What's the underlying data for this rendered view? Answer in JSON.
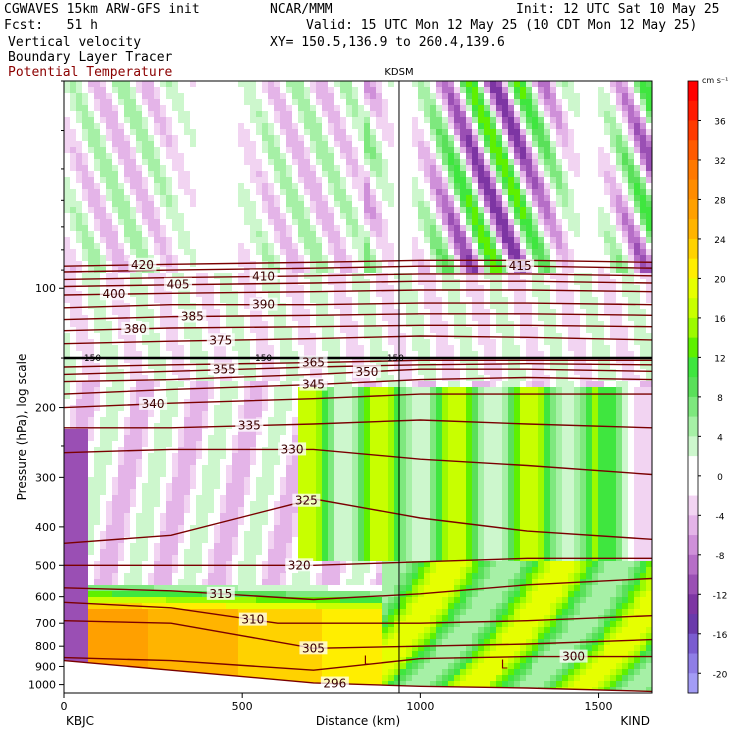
{
  "header": {
    "model": "CGWAVES 15km ARW-GFS init",
    "center": "NCAR/MMM",
    "init": "Init: 12 UTC Sat 10 May 25",
    "fcst": "Fcst:   51 h",
    "valid": "Valid: 15 UTC Mon 12 May 25 (10 CDT Mon 12 May 25)",
    "field1": "Vertical velocity",
    "field2": "Boundary Layer Tracer",
    "field3": "Potential Temperature",
    "xy": "XY= 150.5,136.9 to 260.4,139.6"
  },
  "colors": {
    "theta": "#7a0000",
    "accent_title": "#8b1a1a"
  },
  "chart_data": {
    "type": "heatmap",
    "title": "",
    "xlabel": "Distance (km)",
    "ylabel": "Pressure (hPa), log scale",
    "xlim": [
      0,
      1650
    ],
    "ylim_hpa": [
      1050,
      30
    ],
    "x_ticks": [
      0,
      500,
      1000,
      1500
    ],
    "x_tick_labels": [
      "0",
      "500",
      "1000",
      "1500"
    ],
    "y_ticks": [
      1000,
      900,
      800,
      700,
      600,
      500,
      400,
      300,
      200,
      100
    ],
    "y_tick_labels": [
      "1000",
      "900",
      "800",
      "700",
      "600",
      "500",
      "400",
      "300",
      "200",
      "100"
    ],
    "x_endpoints": [
      "KBJC",
      "KIND"
    ],
    "marker_label": "KDSM",
    "marker_x_km": 940,
    "colorbar": {
      "unit": "cm s⁻¹",
      "tick_labels": [
        "36",
        "32",
        "28",
        "24",
        "20",
        "16",
        "12",
        "8",
        "4",
        "0",
        "-4",
        "-8",
        "-12",
        "-16",
        "-20"
      ],
      "tick_values": [
        36,
        32,
        28,
        24,
        20,
        16,
        12,
        8,
        4,
        0,
        -4,
        -8,
        -12,
        -16,
        -20
      ],
      "levels": [
        {
          "from": 40,
          "to": 38,
          "color": "#ff0000"
        },
        {
          "from": 38,
          "to": 36,
          "color": "#ff1a00"
        },
        {
          "from": 36,
          "to": 34,
          "color": "#ff3a00"
        },
        {
          "from": 34,
          "to": 32,
          "color": "#ff5a00"
        },
        {
          "from": 32,
          "to": 30,
          "color": "#ff7800"
        },
        {
          "from": 30,
          "to": 28,
          "color": "#ff8c00"
        },
        {
          "from": 28,
          "to": 26,
          "color": "#ffa000"
        },
        {
          "from": 26,
          "to": 24,
          "color": "#ffb400"
        },
        {
          "from": 24,
          "to": 22,
          "color": "#ffd200"
        },
        {
          "from": 22,
          "to": 20,
          "color": "#ffee00"
        },
        {
          "from": 20,
          "to": 18,
          "color": "#e6ff00"
        },
        {
          "from": 18,
          "to": 16,
          "color": "#c8ff00"
        },
        {
          "from": 16,
          "to": 14,
          "color": "#9cfa00"
        },
        {
          "from": 14,
          "to": 12,
          "color": "#5ef000"
        },
        {
          "from": 12,
          "to": 10,
          "color": "#3fe63f"
        },
        {
          "from": 10,
          "to": 8,
          "color": "#5ae05a"
        },
        {
          "from": 8,
          "to": 6,
          "color": "#7ee87e"
        },
        {
          "from": 6,
          "to": 4,
          "color": "#a6f0a6"
        },
        {
          "from": 4,
          "to": 2,
          "color": "#cdf7cd"
        },
        {
          "from": 2,
          "to": -2,
          "color": "#ffffff"
        },
        {
          "from": -2,
          "to": -4,
          "color": "#f2d4f2"
        },
        {
          "from": -4,
          "to": -6,
          "color": "#e4b4e8"
        },
        {
          "from": -6,
          "to": -8,
          "color": "#cf90d9"
        },
        {
          "from": -8,
          "to": -10,
          "color": "#b66ec7"
        },
        {
          "from": -10,
          "to": -12,
          "color": "#9a4fb4"
        },
        {
          "from": -12,
          "to": -14,
          "color": "#7d35a3"
        },
        {
          "from": -14,
          "to": -16,
          "color": "#6a3aab"
        },
        {
          "from": -16,
          "to": -18,
          "color": "#7a5cd0"
        },
        {
          "from": -18,
          "to": -20,
          "color": "#8f7ee6"
        },
        {
          "from": -20,
          "to": -22,
          "color": "#a39cf5"
        }
      ]
    },
    "theta_contours": [
      {
        "value": 296,
        "label": "296",
        "x": [
          0,
          300,
          700,
          1000,
          1300,
          1650
        ],
        "p": [
          870,
          920,
          990,
          1010,
          1020,
          1040
        ],
        "label_at_km": 760
      },
      {
        "value": 300,
        "label": "300",
        "x": [
          0,
          300,
          700,
          1000,
          1300,
          1650
        ],
        "p": [
          855,
          870,
          920,
          860,
          850,
          850
        ],
        "label_at_km": 1430
      },
      {
        "value": 305,
        "label": "305",
        "x": [
          0,
          300,
          700,
          1000,
          1300,
          1650
        ],
        "p": [
          690,
          700,
          810,
          800,
          790,
          770
        ],
        "label_at_km": 700
      },
      {
        "value": 310,
        "label": "310",
        "x": [
          0,
          300,
          600,
          1000,
          1300,
          1650
        ],
        "p": [
          620,
          640,
          700,
          700,
          690,
          670
        ],
        "label_at_km": 530
      },
      {
        "value": 315,
        "label": "315",
        "x": [
          0,
          300,
          700,
          1000,
          1300,
          1650
        ],
        "p": [
          570,
          580,
          610,
          590,
          560,
          540
        ],
        "label_at_km": 440
      },
      {
        "value": 320,
        "label": "320",
        "x": [
          0,
          300,
          700,
          1000,
          1300,
          1650
        ],
        "p": [
          500,
          500,
          500,
          490,
          480,
          480
        ],
        "label_at_km": 660
      },
      {
        "value": 325,
        "label": "325",
        "x": [
          0,
          300,
          700,
          1000,
          1300,
          1650
        ],
        "p": [
          440,
          420,
          340,
          380,
          410,
          430
        ],
        "label_at_km": 680
      },
      {
        "value": 330,
        "label": "330",
        "x": [
          0,
          300,
          700,
          1000,
          1300,
          1650
        ],
        "p": [
          260,
          255,
          255,
          270,
          280,
          295
        ],
        "label_at_km": 640
      },
      {
        "value": 335,
        "label": "335",
        "x": [
          0,
          300,
          700,
          1000,
          1300,
          1650
        ],
        "p": [
          225,
          225,
          220,
          215,
          220,
          225
        ],
        "label_at_km": 520
      },
      {
        "value": 340,
        "label": "340",
        "x": [
          0,
          300,
          700,
          1000,
          1300,
          1650
        ],
        "p": [
          200,
          195,
          190,
          185,
          185,
          185
        ],
        "label_at_km": 250
      },
      {
        "value": 345,
        "label": "345",
        "x": [
          0,
          300,
          700,
          1000,
          1300,
          1650
        ],
        "p": [
          185,
          180,
          175,
          170,
          168,
          170
        ],
        "label_at_km": 700
      },
      {
        "value": 350,
        "label": "350",
        "x": [
          0,
          300,
          700,
          1000,
          1300,
          1650
        ],
        "p": [
          172,
          170,
          165,
          160,
          160,
          162
        ],
        "label_at_km": 850
      },
      {
        "value": 355,
        "label": "355",
        "x": [
          0,
          300,
          700,
          1000,
          1300,
          1650
        ],
        "p": [
          165,
          162,
          158,
          156,
          155,
          156
        ],
        "label_at_km": 450
      },
      {
        "value": 365,
        "label": "365",
        "x": [
          0,
          300,
          700,
          1000,
          1300,
          1650
        ],
        "p": [
          158,
          156,
          154,
          152,
          152,
          152
        ],
        "label_at_km": 700
      },
      {
        "value": 375,
        "label": "375",
        "x": [
          0,
          300,
          700,
          1000,
          1300,
          1650
        ],
        "p": [
          138,
          136,
          134,
          132,
          133,
          135
        ],
        "label_at_km": 440
      },
      {
        "value": 380,
        "label": "380",
        "x": [
          0,
          300,
          700,
          1000,
          1300,
          1650
        ],
        "p": [
          128,
          126,
          125,
          124,
          124,
          125
        ],
        "label_at_km": 200
      },
      {
        "value": 385,
        "label": "385",
        "x": [
          0,
          300,
          700,
          1000,
          1300,
          1650
        ],
        "p": [
          120,
          118,
          117,
          116,
          116,
          117
        ],
        "label_at_km": 360
      },
      {
        "value": 390,
        "label": "390",
        "x": [
          0,
          300,
          700,
          1000,
          1300,
          1650
        ],
        "p": [
          112,
          110,
          110,
          109,
          109,
          110
        ],
        "label_at_km": 560
      },
      {
        "value": 400,
        "label": "400",
        "x": [
          0,
          300,
          700,
          1000,
          1300,
          1650
        ],
        "p": [
          104,
          103,
          102,
          101,
          101,
          102
        ],
        "label_at_km": 140
      },
      {
        "value": 405,
        "label": "405",
        "x": [
          0,
          300,
          700,
          1000,
          1300,
          1650
        ],
        "p": [
          99,
          98,
          97,
          96,
          96,
          97
        ],
        "label_at_km": 320
      },
      {
        "value": 410,
        "label": "410",
        "x": [
          0,
          300,
          700,
          1000,
          1300,
          1650
        ],
        "p": [
          95,
          94,
          93,
          92,
          92,
          93
        ],
        "label_at_km": 560
      },
      {
        "value": 415,
        "label": "415",
        "x": [
          0,
          300,
          700,
          1000,
          1300,
          1650
        ],
        "p": [
          91,
          90,
          89,
          88,
          88,
          89
        ],
        "label_at_km": 1280
      },
      {
        "value": 420,
        "label": "420",
        "x": [
          0,
          300,
          700,
          1000,
          1300,
          1650
        ],
        "p": [
          88,
          87,
          86,
          85,
          85,
          86
        ],
        "label_at_km": 220
      }
    ],
    "tracer_label_150": "150",
    "tracer_line_p": 150,
    "low_labels": [
      {
        "text": "L",
        "x_km": 850,
        "p": 870
      },
      {
        "text": "L",
        "x_km": 1235,
        "p": 890
      }
    ]
  }
}
